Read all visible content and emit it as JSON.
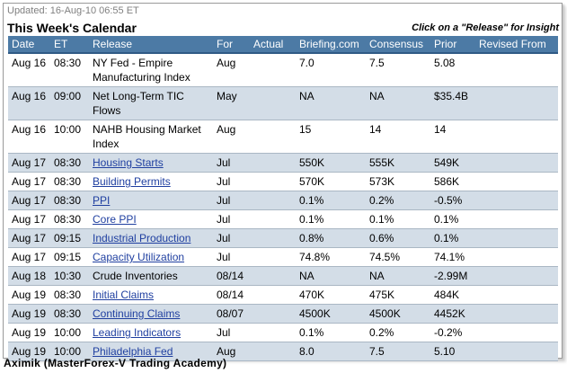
{
  "updated": "Updated: 16-Aug-10 06:55 ET",
  "title": "This Week's Calendar",
  "hint": "Click on a \"Release\" for Insight",
  "columns": [
    "Date",
    "ET",
    "Release",
    "For",
    "Actual",
    "Briefing.com",
    "Consensus",
    "Prior",
    "Revised From"
  ],
  "rows": [
    {
      "date": "Aug 16",
      "et": "08:30",
      "release": "NY Fed - Empire Manufacturing Index",
      "link": false,
      "for": "Aug",
      "actual": "",
      "briefing": "7.0",
      "consensus": "7.5",
      "prior": "5.08",
      "revised": ""
    },
    {
      "date": "Aug 16",
      "et": "09:00",
      "release": "Net Long-Term TIC Flows",
      "link": false,
      "for": "May",
      "actual": "",
      "briefing": "NA",
      "consensus": "NA",
      "prior": "$35.4B",
      "revised": ""
    },
    {
      "date": "Aug 16",
      "et": "10:00",
      "release": "NAHB Housing Market Index",
      "link": false,
      "for": "Aug",
      "actual": "",
      "briefing": "15",
      "consensus": "14",
      "prior": "14",
      "revised": ""
    },
    {
      "date": "Aug 17",
      "et": "08:30",
      "release": "Housing Starts",
      "link": true,
      "for": "Jul",
      "actual": "",
      "briefing": "550K",
      "consensus": "555K",
      "prior": "549K",
      "revised": ""
    },
    {
      "date": "Aug 17",
      "et": "08:30",
      "release": "Building Permits",
      "link": true,
      "for": "Jul",
      "actual": "",
      "briefing": "570K",
      "consensus": "573K",
      "prior": "586K",
      "revised": ""
    },
    {
      "date": "Aug 17",
      "et": "08:30",
      "release": "PPI",
      "link": true,
      "for": "Jul",
      "actual": "",
      "briefing": "0.1%",
      "consensus": "0.2%",
      "prior": "-0.5%",
      "revised": ""
    },
    {
      "date": "Aug 17",
      "et": "08:30",
      "release": "Core PPI",
      "link": true,
      "for": "Jul",
      "actual": "",
      "briefing": "0.1%",
      "consensus": "0.1%",
      "prior": "0.1%",
      "revised": ""
    },
    {
      "date": "Aug 17",
      "et": "09:15",
      "release": "Industrial Production",
      "link": true,
      "for": "Jul",
      "actual": "",
      "briefing": "0.8%",
      "consensus": "0.6%",
      "prior": "0.1%",
      "revised": ""
    },
    {
      "date": "Aug 17",
      "et": "09:15",
      "release": "Capacity Utilization",
      "link": true,
      "for": "Jul",
      "actual": "",
      "briefing": "74.8%",
      "consensus": "74.5%",
      "prior": "74.1%",
      "revised": ""
    },
    {
      "date": "Aug 18",
      "et": "10:30",
      "release": "Crude Inventories",
      "link": false,
      "for": "08/14",
      "actual": "",
      "briefing": "NA",
      "consensus": "NA",
      "prior": "-2.99M",
      "revised": ""
    },
    {
      "date": "Aug 19",
      "et": "08:30",
      "release": "Initial Claims",
      "link": true,
      "for": "08/14",
      "actual": "",
      "briefing": "470K",
      "consensus": "475K",
      "prior": "484K",
      "revised": ""
    },
    {
      "date": "Aug 19",
      "et": "08:30",
      "release": "Continuing Claims",
      "link": true,
      "for": "08/07",
      "actual": "",
      "briefing": "4500K",
      "consensus": "4500K",
      "prior": "4452K",
      "revised": ""
    },
    {
      "date": "Aug 19",
      "et": "10:00",
      "release": "Leading Indicators",
      "link": true,
      "for": "Jul",
      "actual": "",
      "briefing": "0.1%",
      "consensus": "0.2%",
      "prior": "-0.2%",
      "revised": ""
    },
    {
      "date": "Aug 19",
      "et": "10:00",
      "release": "Philadelphia Fed",
      "link": true,
      "for": "Aug",
      "actual": "",
      "briefing": "8.0",
      "consensus": "7.5",
      "prior": "5.10",
      "revised": ""
    }
  ],
  "footer": "Aximik (MasterForex-V Trading Academy)",
  "colors": {
    "header_bg": "#4c7aa5",
    "alt_row": "#d3dde7",
    "link": "#1f3fa0"
  }
}
